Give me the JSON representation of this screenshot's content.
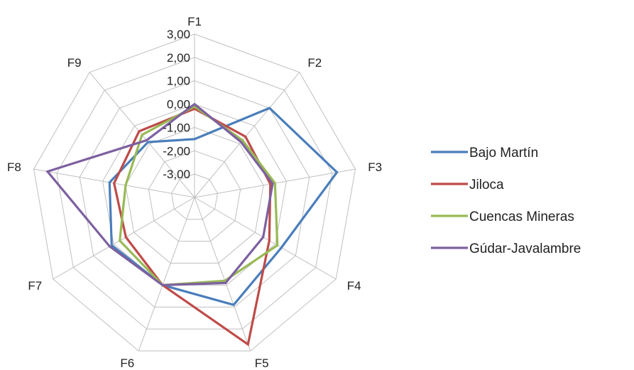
{
  "chart_data": {
    "type": "radar",
    "axes": [
      "F1",
      "F2",
      "F3",
      "F4",
      "F5",
      "F6",
      "F7",
      "F8",
      "F9"
    ],
    "rlim": [
      -4,
      3
    ],
    "tick_values": [
      -3,
      -2,
      -1,
      0,
      1,
      2,
      3
    ],
    "tick_labels": [
      "-3,00",
      "-2,00",
      "-1,00",
      "0,00",
      "1,00",
      "2,00",
      "3,00"
    ],
    "grid": true,
    "legend_position": "right",
    "series": [
      {
        "name": "Bajo Martín",
        "color": "#4a7ebb",
        "values": [
          -1.5,
          1.0,
          2.2,
          0.3,
          0.9,
          0.0,
          0.1,
          -0.3,
          -0.9
        ]
      },
      {
        "name": "Jiloca",
        "color": "#be4b48",
        "values": [
          -0.2,
          -0.6,
          -0.7,
          -0.3,
          2.7,
          0.0,
          -0.6,
          -0.5,
          -0.3
        ]
      },
      {
        "name": "Cuencas Mineras",
        "color": "#98b954",
        "values": [
          -0.1,
          -0.8,
          -0.5,
          0.1,
          -0.2,
          0.0,
          -0.3,
          -1.0,
          -0.5
        ]
      },
      {
        "name": "Gúdar-Javalambre",
        "color": "#7d60a0",
        "values": [
          0.0,
          -0.9,
          -0.6,
          -0.6,
          -0.1,
          0.0,
          0.2,
          2.4,
          -0.8
        ]
      }
    ]
  }
}
